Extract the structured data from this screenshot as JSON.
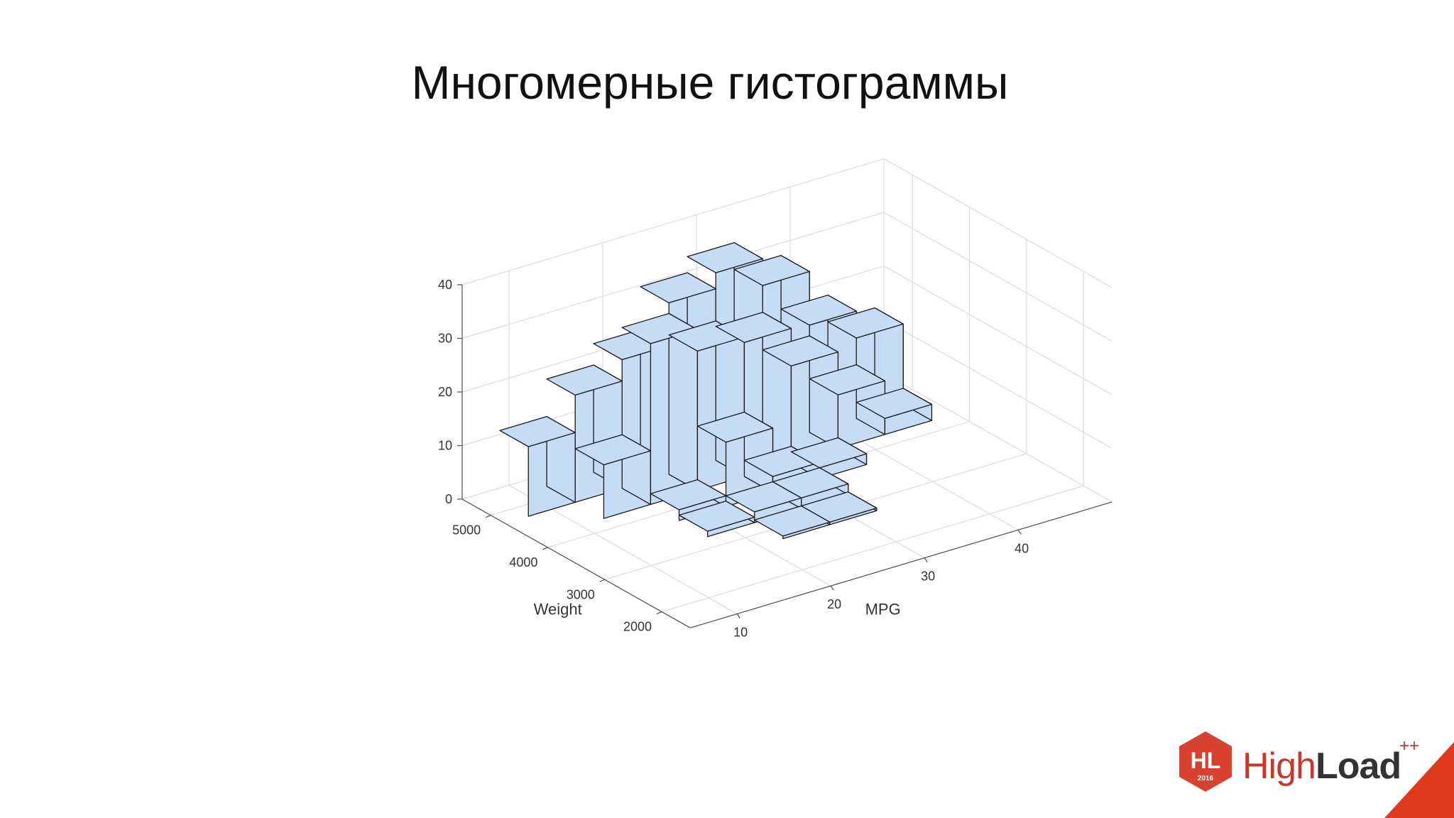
{
  "slide": {
    "title": "Многомерные гистограммы"
  },
  "chart_data": {
    "type": "bar3d",
    "xlabel": "MPG",
    "ylabel": "Weight",
    "zlim": [
      0,
      40
    ],
    "xlim": [
      5,
      50
    ],
    "ylim": [
      1500,
      5500
    ],
    "x_ticks": [
      10,
      20,
      30,
      40
    ],
    "y_ticks": [
      2000,
      3000,
      4000,
      5000
    ],
    "z_ticks": [
      0,
      10,
      20,
      30,
      40
    ],
    "x_bin_centers": [
      10,
      15,
      20,
      25,
      30,
      35,
      40,
      45
    ],
    "y_bin_centers": [
      5000,
      4500,
      4000,
      3500,
      3000,
      2500,
      2000
    ],
    "bars": [
      {
        "mpg": 10,
        "weight": 5000,
        "count": 13
      },
      {
        "mpg": 15,
        "weight": 5000,
        "count": 20
      },
      {
        "mpg": 20,
        "weight": 5000,
        "count": 24
      },
      {
        "mpg": 25,
        "weight": 5000,
        "count": 32
      },
      {
        "mpg": 30,
        "weight": 5000,
        "count": 35
      },
      {
        "mpg": 35,
        "weight": 5000,
        "count": 30
      },
      {
        "mpg": 40,
        "weight": 5000,
        "count": 20
      },
      {
        "mpg": 45,
        "weight": 5000,
        "count": 15
      },
      {
        "mpg": 15,
        "weight": 4500,
        "count": 10
      },
      {
        "mpg": 20,
        "weight": 4500,
        "count": 30
      },
      {
        "mpg": 25,
        "weight": 4500,
        "count": 26
      },
      {
        "mpg": 30,
        "weight": 4500,
        "count": 25
      },
      {
        "mpg": 35,
        "weight": 4500,
        "count": 18
      },
      {
        "mpg": 40,
        "weight": 4500,
        "count": 10
      },
      {
        "mpg": 45,
        "weight": 4500,
        "count": 3
      },
      {
        "mpg": 20,
        "weight": 4000,
        "count": 2
      },
      {
        "mpg": 25,
        "weight": 4000,
        "count": 12
      },
      {
        "mpg": 30,
        "weight": 4000,
        "count": 3
      },
      {
        "mpg": 35,
        "weight": 4000,
        "count": 2
      },
      {
        "mpg": 20,
        "weight": 3500,
        "count": 1
      },
      {
        "mpg": 25,
        "weight": 3500,
        "count": 2
      },
      {
        "mpg": 30,
        "weight": 3500,
        "count": 2
      },
      {
        "mpg": 25,
        "weight": 3000,
        "count": 0.5
      },
      {
        "mpg": 30,
        "weight": 3000,
        "count": 0.5
      }
    ],
    "bar_color": "#c5dcf4",
    "edge_color": "#1a1a1a",
    "grid": true
  },
  "logo": {
    "badge": "HL",
    "year": "2016",
    "name_light": "High",
    "name_bold": "Load",
    "superscript": "++",
    "brand_color": "#d8412f",
    "corner_color": "#e03a1e"
  }
}
